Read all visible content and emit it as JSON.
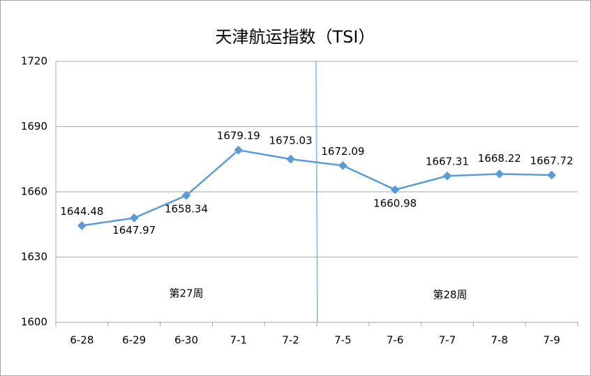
{
  "chart_data": {
    "type": "line",
    "title": "天津航运指数（TSI）",
    "categories": [
      "6-28",
      "6-29",
      "6-30",
      "7-1",
      "7-2",
      "7-5",
      "7-6",
      "7-7",
      "7-8",
      "7-9"
    ],
    "series": [
      {
        "name": "TSI",
        "color": "#5b9bd5",
        "values": [
          1644.48,
          1647.97,
          1658.34,
          1679.19,
          1675.03,
          1672.09,
          1660.98,
          1667.31,
          1668.22,
          1667.72
        ]
      }
    ],
    "ylim": [
      1600,
      1720
    ],
    "yticks": [
      1600,
      1630,
      1660,
      1690,
      1720
    ],
    "grid": true,
    "annotations": [
      "第27周",
      "第28周"
    ]
  }
}
